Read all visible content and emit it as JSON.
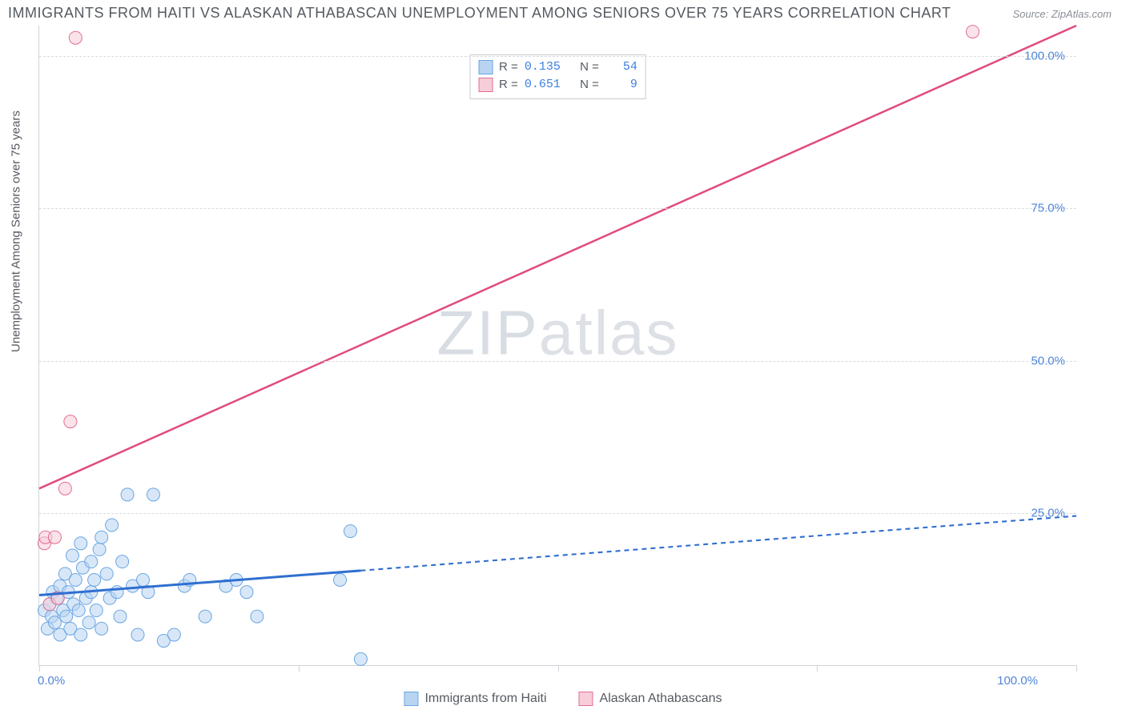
{
  "title": "IMMIGRANTS FROM HAITI VS ALASKAN ATHABASCAN UNEMPLOYMENT AMONG SENIORS OVER 75 YEARS CORRELATION CHART",
  "source": "Source: ZipAtlas.com",
  "watermark_a": "ZIP",
  "watermark_b": "atlas",
  "y_axis_label": "Unemployment Among Seniors over 75 years",
  "chart": {
    "type": "scatter",
    "background_color": "#ffffff",
    "grid_color": "#d7dade",
    "axis_color": "#cfd3d8",
    "xlim": [
      0,
      100
    ],
    "ylim": [
      0,
      105
    ],
    "x_ticks": [
      0,
      25,
      50,
      75,
      100
    ],
    "x_tick_labels": [
      "0.0%",
      "",
      "",
      "",
      "100.0%"
    ],
    "y_ticks": [
      25,
      50,
      75,
      100
    ],
    "y_tick_labels": [
      "25.0%",
      "50.0%",
      "75.0%",
      "100.0%"
    ],
    "series": [
      {
        "name": "Immigrants from Haiti",
        "color_fill": "#b8d4f1",
        "color_stroke": "#6aa6e4",
        "marker_radius": 8,
        "fill_opacity": 0.55,
        "trend": {
          "x1": 0,
          "y1": 11.5,
          "x2": 100,
          "y2": 24.5,
          "solid_until_x": 31,
          "color": "#2f6fd0",
          "width": 3,
          "dash": "6 5"
        },
        "R": "0.135",
        "N": "54",
        "points": [
          [
            0.5,
            9
          ],
          [
            0.8,
            6
          ],
          [
            1.0,
            10
          ],
          [
            1.2,
            8
          ],
          [
            1.3,
            12
          ],
          [
            1.5,
            7
          ],
          [
            1.7,
            11
          ],
          [
            2.0,
            5
          ],
          [
            2.0,
            13
          ],
          [
            2.3,
            9
          ],
          [
            2.5,
            15
          ],
          [
            2.6,
            8
          ],
          [
            2.8,
            12
          ],
          [
            3.0,
            6
          ],
          [
            3.2,
            18
          ],
          [
            3.3,
            10
          ],
          [
            3.5,
            14
          ],
          [
            3.8,
            9
          ],
          [
            4.0,
            5
          ],
          [
            4.0,
            20
          ],
          [
            4.2,
            16
          ],
          [
            4.5,
            11
          ],
          [
            4.8,
            7
          ],
          [
            5.0,
            17
          ],
          [
            5.0,
            12
          ],
          [
            5.3,
            14
          ],
          [
            5.5,
            9
          ],
          [
            5.8,
            19
          ],
          [
            6.0,
            6
          ],
          [
            6.0,
            21
          ],
          [
            6.5,
            15
          ],
          [
            6.8,
            11
          ],
          [
            7.0,
            23
          ],
          [
            7.5,
            12
          ],
          [
            7.8,
            8
          ],
          [
            8.0,
            17
          ],
          [
            8.5,
            28
          ],
          [
            9.0,
            13
          ],
          [
            9.5,
            5
          ],
          [
            10.0,
            14
          ],
          [
            10.5,
            12
          ],
          [
            11.0,
            28
          ],
          [
            12.0,
            4
          ],
          [
            13.0,
            5
          ],
          [
            14.0,
            13
          ],
          [
            14.5,
            14
          ],
          [
            16.0,
            8
          ],
          [
            18.0,
            13
          ],
          [
            19.0,
            14
          ],
          [
            20.0,
            12
          ],
          [
            21.0,
            8
          ],
          [
            29.0,
            14
          ],
          [
            30.0,
            22
          ],
          [
            31.0,
            1
          ]
        ]
      },
      {
        "name": "Alaskan Athabascans",
        "color_fill": "#f6cdd8",
        "color_stroke": "#e36d93",
        "marker_radius": 8,
        "fill_opacity": 0.55,
        "trend": {
          "x1": 0,
          "y1": 29,
          "x2": 100,
          "y2": 105,
          "solid_until_x": 100,
          "color": "#e14b7e",
          "width": 2.5,
          "dash": ""
        },
        "R": "0.651",
        "N": "9",
        "points": [
          [
            0.5,
            20
          ],
          [
            0.6,
            21
          ],
          [
            1.0,
            10
          ],
          [
            1.5,
            21
          ],
          [
            1.8,
            11
          ],
          [
            2.5,
            29
          ],
          [
            3.0,
            40
          ],
          [
            3.5,
            103
          ],
          [
            90.0,
            104
          ]
        ]
      }
    ],
    "stat_legend_labels": {
      "R": "R =",
      "N": "N ="
    },
    "text_color": "#555a61",
    "value_color": "#3b7fe0",
    "title_fontsize": 18,
    "label_fontsize": 15,
    "tick_fontsize": 15,
    "legend_fontsize": 16
  }
}
